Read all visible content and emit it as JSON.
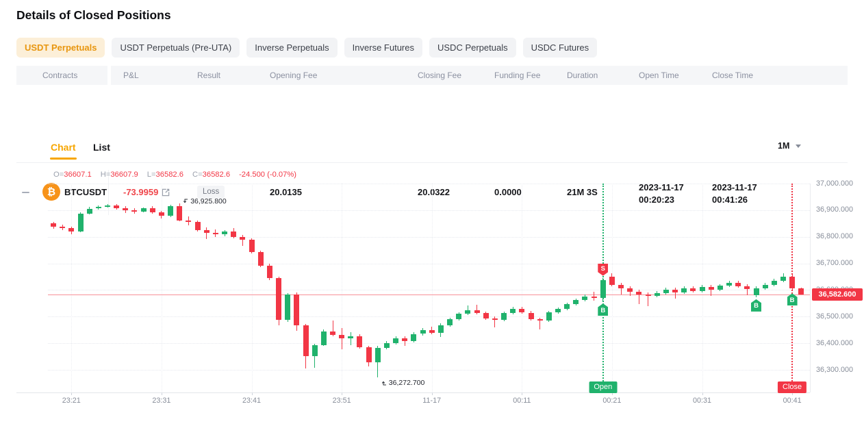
{
  "page": {
    "title": "Details of Closed Positions"
  },
  "contract_tabs": [
    {
      "label": "USDT Perpetuals",
      "active": true
    },
    {
      "label": "USDT Perpetuals (Pre-UTA)",
      "active": false
    },
    {
      "label": "Inverse Perpetuals",
      "active": false
    },
    {
      "label": "Inverse Futures",
      "active": false
    },
    {
      "label": "USDC Perpetuals",
      "active": false
    },
    {
      "label": "USDC Futures",
      "active": false
    }
  ],
  "table": {
    "headers": [
      "Contracts",
      "P&L",
      "Result",
      "Opening Fee",
      "Closing Fee",
      "Funding Fee",
      "Duration",
      "Open Time",
      "Close Time"
    ],
    "row": {
      "coin_glyph": "₿",
      "contracts": "BTCUSDT",
      "pnl": "-73.9959",
      "result": "Loss",
      "opening_fee": "20.0135",
      "closing_fee": "20.0322",
      "funding_fee": "0.0000",
      "duration": "21M 3S",
      "open_time_date": "2023-11-17",
      "open_time_clock": "00:20:23",
      "close_time_date": "2023-11-17",
      "close_time_clock": "00:41:26"
    }
  },
  "chart_section": {
    "tab_chart": "Chart",
    "tab_list": "List",
    "interval": "1M",
    "ohlc": {
      "parts": [
        [
          "O=",
          "36607.1"
        ],
        [
          "H=",
          "36607.9"
        ],
        [
          "L=",
          "36582.6"
        ],
        [
          "C=",
          "36582.6"
        ]
      ],
      "change": "-24.500 (-0.07%)"
    }
  },
  "chart_data": {
    "type": "candlestick",
    "symbol": "BTCUSDT",
    "interval": "1M",
    "colors": {
      "up": "#20b26c",
      "down": "#f23645",
      "accent": "#f7a600",
      "price_line": "#f23645"
    },
    "y_ticks": [
      {
        "p": 37000,
        "label": "37,000.000"
      },
      {
        "p": 36900,
        "label": "36,900.000"
      },
      {
        "p": 36800,
        "label": "36,800.000"
      },
      {
        "p": 36700,
        "label": "36,700.000"
      },
      {
        "p": 36600,
        "label": "36,600.000"
      },
      {
        "p": 36500,
        "label": "36,500.000"
      },
      {
        "p": 36400,
        "label": "36,400.000"
      },
      {
        "p": 36300,
        "label": "36,300.000"
      }
    ],
    "x_ticks": [
      {
        "i": 2,
        "label": "23:21"
      },
      {
        "i": 12,
        "label": "23:31"
      },
      {
        "i": 22,
        "label": "23:41"
      },
      {
        "i": 32,
        "label": "23:51"
      },
      {
        "i": 42,
        "label": "11-17"
      },
      {
        "i": 52,
        "label": "00:11"
      },
      {
        "i": 62,
        "label": "00:21"
      },
      {
        "i": 72,
        "label": "00:31"
      },
      {
        "i": 82,
        "label": "00:41"
      }
    ],
    "current_price": {
      "value": 36582.6,
      "label": "36,582.600"
    },
    "extremes": {
      "high": {
        "i": 14,
        "text": "36,925.800"
      },
      "low": {
        "i": 36,
        "text": "36,272.700"
      }
    },
    "events": [
      {
        "i": 61,
        "label": "Open",
        "color": "#20b26c"
      },
      {
        "i": 82,
        "label": "Close",
        "color": "#f23645"
      }
    ],
    "trade_markers": [
      {
        "i": 61,
        "letter": "S",
        "pos": "above",
        "color": "#f23645"
      },
      {
        "i": 61,
        "letter": "B",
        "pos": "below",
        "color": "#20b26c"
      },
      {
        "i": 78,
        "letter": "B",
        "pos": "below",
        "color": "#20b26c"
      },
      {
        "i": 82,
        "letter": "B",
        "pos": "below",
        "color": "#20b26c"
      }
    ],
    "candles": [
      [
        36852,
        36857,
        36829,
        36839
      ],
      [
        36839,
        36845,
        36824,
        36832
      ],
      [
        36832,
        36838,
        36811,
        36820
      ],
      [
        36820,
        36893,
        36816,
        36888
      ],
      [
        36888,
        36913,
        36884,
        36906
      ],
      [
        36906,
        36917,
        36902,
        36913
      ],
      [
        36913,
        36924,
        36909,
        36917
      ],
      [
        36917,
        36923,
        36902,
        36907
      ],
      [
        36907,
        36914,
        36889,
        36899
      ],
      [
        36899,
        36908,
        36887,
        36895
      ],
      [
        36895,
        36911,
        36891,
        36907
      ],
      [
        36907,
        36916,
        36886,
        36892
      ],
      [
        36892,
        36898,
        36869,
        36879
      ],
      [
        36879,
        36921,
        36875,
        36915
      ],
      [
        36915,
        36925.8,
        36857,
        36861
      ],
      [
        36861,
        36877,
        36842,
        36856
      ],
      [
        36856,
        36862,
        36819,
        36826
      ],
      [
        36826,
        36836,
        36791,
        36814
      ],
      [
        36814,
        36829,
        36799,
        36809
      ],
      [
        36809,
        36825,
        36803,
        36820
      ],
      [
        36820,
        36832,
        36794,
        36800
      ],
      [
        36800,
        36808,
        36766,
        36788
      ],
      [
        36788,
        36794,
        36737,
        36742
      ],
      [
        36742,
        36748,
        36687,
        36692
      ],
      [
        36692,
        36698,
        36637,
        36645
      ],
      [
        36645,
        36651,
        36467,
        36487
      ],
      [
        36487,
        36589,
        36481,
        36584
      ],
      [
        36584,
        36590,
        36447,
        36467
      ],
      [
        36467,
        36473,
        36305,
        36351
      ],
      [
        36351,
        36399,
        36309,
        36393
      ],
      [
        36393,
        36451,
        36389,
        36445
      ],
      [
        36445,
        36485,
        36427,
        36432
      ],
      [
        36432,
        36456,
        36377,
        36418
      ],
      [
        36418,
        36441,
        36393,
        36427
      ],
      [
        36427,
        36433,
        36379,
        36385
      ],
      [
        36385,
        36391,
        36312,
        36328
      ],
      [
        36328,
        36389,
        36272.7,
        36383
      ],
      [
        36383,
        36407,
        36377,
        36400
      ],
      [
        36400,
        36425,
        36396,
        36418
      ],
      [
        36418,
        36426,
        36389,
        36408
      ],
      [
        36408,
        36441,
        36403,
        36435
      ],
      [
        36435,
        36457,
        36429,
        36450
      ],
      [
        36450,
        36462,
        36433,
        36439
      ],
      [
        36439,
        36475,
        36423,
        36468
      ],
      [
        36468,
        36497,
        36463,
        36490
      ],
      [
        36490,
        36517,
        36485,
        36510
      ],
      [
        36510,
        36541,
        36505,
        36525
      ],
      [
        36525,
        36544,
        36508,
        36513
      ],
      [
        36513,
        36520,
        36487,
        36494
      ],
      [
        36494,
        36501,
        36460,
        36487
      ],
      [
        36487,
        36519,
        36482,
        36513
      ],
      [
        36513,
        36537,
        36508,
        36530
      ],
      [
        36530,
        36538,
        36510,
        36515
      ],
      [
        36515,
        36521,
        36485,
        36490
      ],
      [
        36490,
        36497,
        36452,
        36486
      ],
      [
        36486,
        36522,
        36481,
        36517
      ],
      [
        36517,
        36535,
        36512,
        36529
      ],
      [
        36529,
        36552,
        36524,
        36546
      ],
      [
        36546,
        36569,
        36541,
        36563
      ],
      [
        36563,
        36582,
        36558,
        36576
      ],
      [
        36576,
        36593,
        36561,
        36570
      ],
      [
        36570,
        36646,
        36557,
        36637
      ],
      [
        36651,
        36663,
        36615,
        36620
      ],
      [
        36620,
        36627,
        36583,
        36607
      ],
      [
        36607,
        36614,
        36577,
        36593
      ],
      [
        36593,
        36600,
        36546,
        36583
      ],
      [
        36583,
        36590,
        36540,
        36577
      ],
      [
        36577,
        36595,
        36572,
        36589
      ],
      [
        36589,
        36609,
        36584,
        36602
      ],
      [
        36602,
        36610,
        36568,
        36591
      ],
      [
        36591,
        36613,
        36586,
        36607
      ],
      [
        36607,
        36614,
        36590,
        36596
      ],
      [
        36596,
        36618,
        36591,
        36612
      ],
      [
        36612,
        36619,
        36578,
        36600
      ],
      [
        36600,
        36623,
        36595,
        36617
      ],
      [
        36617,
        36634,
        36612,
        36627
      ],
      [
        36627,
        36635,
        36609,
        36614
      ],
      [
        36614,
        36621,
        36580,
        36603
      ],
      [
        36580,
        36613,
        36573,
        36607
      ],
      [
        36607,
        36627,
        36602,
        36620
      ],
      [
        36620,
        36642,
        36615,
        36635
      ],
      [
        36635,
        36662,
        36630,
        36651
      ],
      [
        36651,
        36658,
        36595,
        36607
      ],
      [
        36607.1,
        36607.9,
        36582.6,
        36582.6
      ]
    ]
  }
}
